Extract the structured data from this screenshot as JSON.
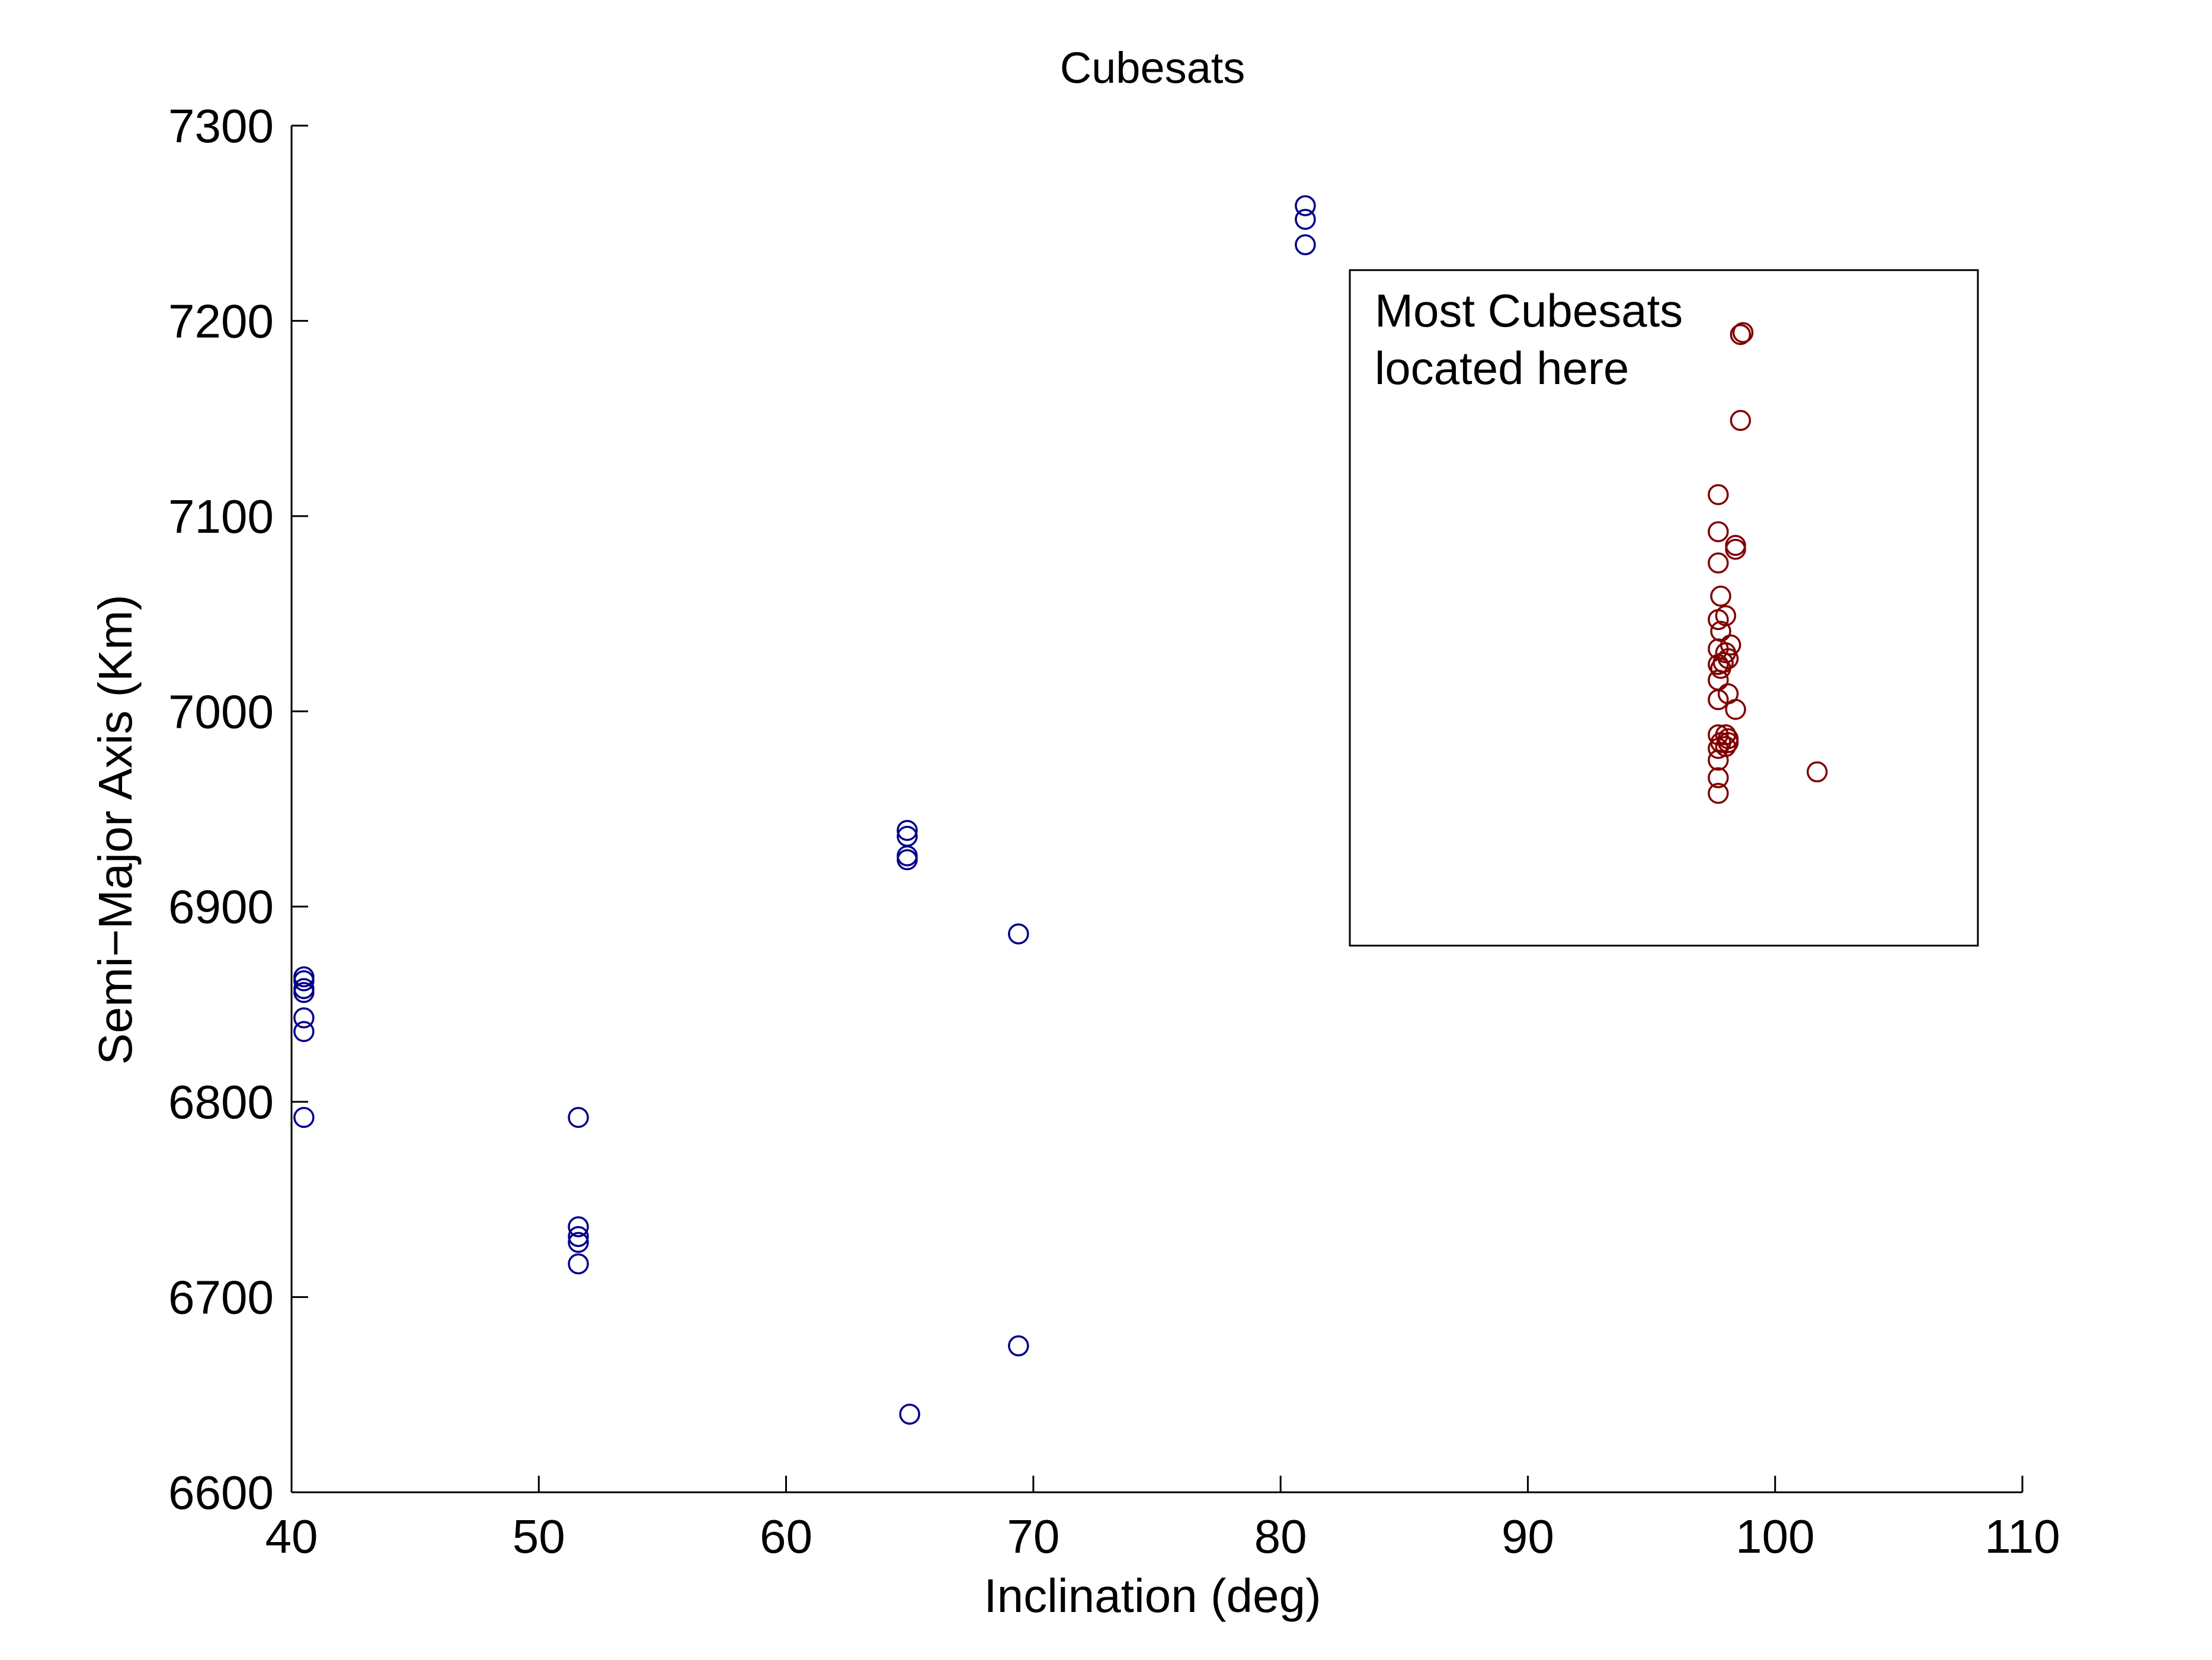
{
  "chart_data": {
    "type": "scatter",
    "title": "Cubesats",
    "xlabel": "Inclination (deg)",
    "ylabel": "Semi−Major Axis (Km)",
    "xlim": [
      40,
      110
    ],
    "ylim": [
      6600,
      7300
    ],
    "xticks": [
      40,
      50,
      60,
      70,
      80,
      90,
      100,
      110
    ],
    "yticks": [
      6600,
      6700,
      6800,
      6900,
      7000,
      7100,
      7200,
      7300
    ],
    "grid": false,
    "marker": "open-circle",
    "series": [
      {
        "color": "#00008b",
        "points": [
          [
            40.5,
            6864
          ],
          [
            40.5,
            6862
          ],
          [
            40.5,
            6858
          ],
          [
            40.5,
            6856
          ],
          [
            40.5,
            6843
          ],
          [
            40.5,
            6836
          ],
          [
            40.5,
            6792
          ],
          [
            51.6,
            6792
          ],
          [
            51.6,
            6736
          ],
          [
            51.6,
            6731
          ],
          [
            51.6,
            6728
          ],
          [
            51.6,
            6717
          ],
          [
            64.9,
            6939
          ],
          [
            64.9,
            6936
          ],
          [
            64.9,
            6926
          ],
          [
            64.9,
            6924
          ],
          [
            65.0,
            6640
          ],
          [
            69.4,
            6886
          ],
          [
            69.4,
            6675
          ],
          [
            81.0,
            7259
          ],
          [
            81.0,
            7252
          ],
          [
            81.0,
            7239
          ]
        ]
      },
      {
        "color": "#800000",
        "points": [
          [
            98.7,
            7194
          ],
          [
            98.6,
            7193
          ],
          [
            98.6,
            7149
          ],
          [
            97.7,
            7111
          ],
          [
            97.7,
            7092
          ],
          [
            98.4,
            7085
          ],
          [
            98.4,
            7083
          ],
          [
            97.7,
            7076
          ],
          [
            97.8,
            7059
          ],
          [
            98.0,
            7049
          ],
          [
            97.7,
            7047
          ],
          [
            97.8,
            7041
          ],
          [
            98.2,
            7034
          ],
          [
            97.7,
            7032
          ],
          [
            98.0,
            7030
          ],
          [
            98.1,
            7027
          ],
          [
            97.9,
            7025
          ],
          [
            97.7,
            7024
          ],
          [
            97.8,
            7022
          ],
          [
            97.7,
            7016
          ],
          [
            98.1,
            7009
          ],
          [
            97.7,
            7006
          ],
          [
            98.4,
            7001
          ],
          [
            97.7,
            6988
          ],
          [
            98.0,
            6988
          ],
          [
            98.1,
            6986
          ],
          [
            97.8,
            6984
          ],
          [
            98.1,
            6984
          ],
          [
            97.7,
            6981
          ],
          [
            98.0,
            6982
          ],
          [
            97.7,
            6975
          ],
          [
            97.7,
            6966
          ],
          [
            97.7,
            6958
          ],
          [
            101.7,
            6969
          ]
        ]
      }
    ],
    "annotation": {
      "lines": [
        "Most Cubesats",
        "located here"
      ],
      "box": {
        "x": [
          82.8,
          108.2
        ],
        "y": [
          6880,
          7226
        ]
      }
    }
  }
}
